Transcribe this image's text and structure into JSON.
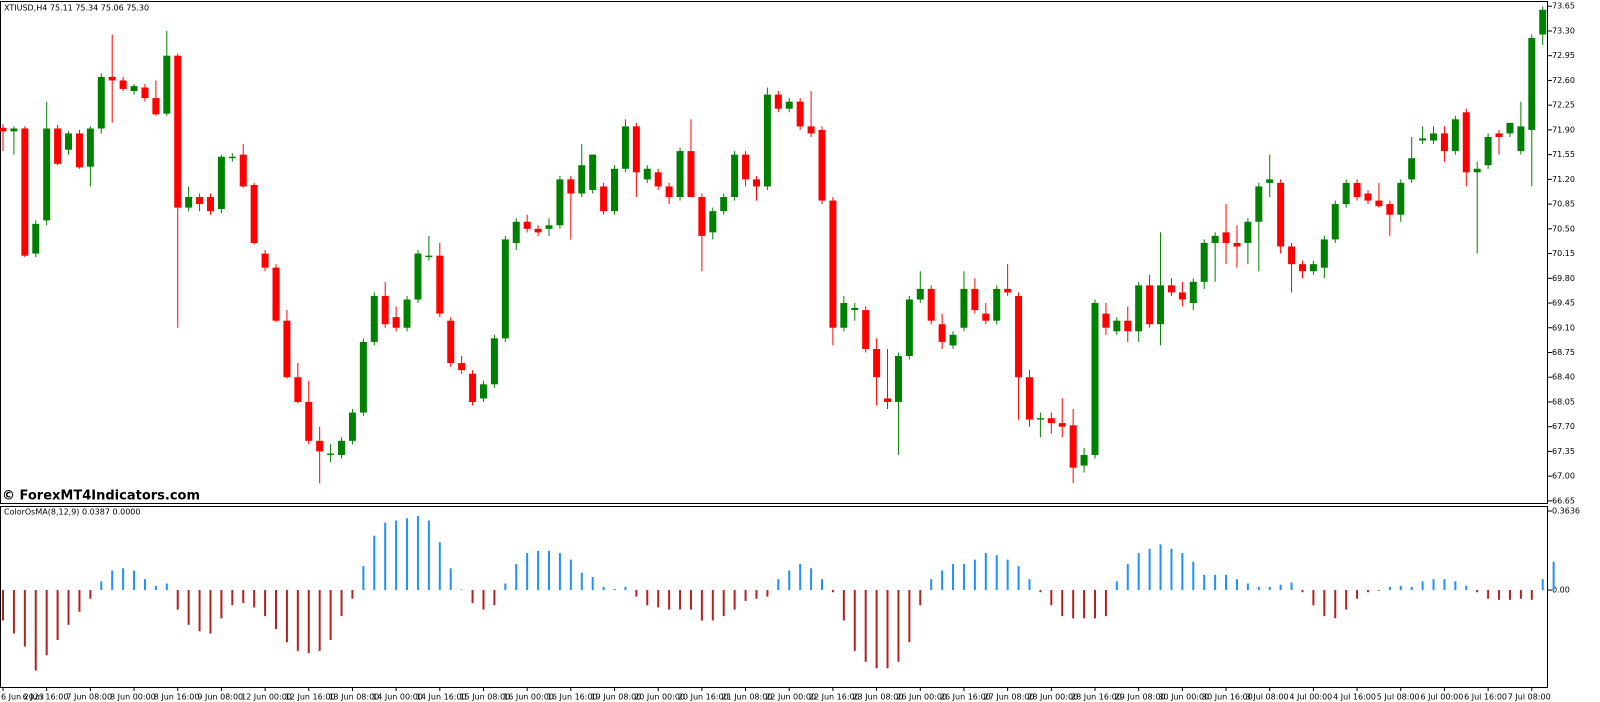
{
  "chart_data": [
    {
      "type": "candlestick",
      "title": "XTIUSD,H4  75.11 75.34 75.06 75.30",
      "annotation": "© ForexMT4Indicators.com",
      "up_color": "#008000",
      "down_color": "#ff0000",
      "wick_color": "#000000",
      "ylim": [
        66.62,
        73.71
      ],
      "yticks": [
        {
          "value": 73.65,
          "label": "73.65"
        },
        {
          "value": 73.3,
          "label": "73.30"
        },
        {
          "value": 72.95,
          "label": "72.95"
        },
        {
          "value": 72.6,
          "label": "72.60"
        },
        {
          "value": 72.25,
          "label": "72.25"
        },
        {
          "value": 71.9,
          "label": "71.90"
        },
        {
          "value": 71.55,
          "label": "71.55"
        },
        {
          "value": 71.2,
          "label": "71.20"
        },
        {
          "value": 70.85,
          "label": "70.85"
        },
        {
          "value": 70.5,
          "label": "70.50"
        },
        {
          "value": 70.15,
          "label": "70.15"
        },
        {
          "value": 69.8,
          "label": "69.80"
        },
        {
          "value": 69.45,
          "label": "69.45"
        },
        {
          "value": 69.1,
          "label": "69.10"
        },
        {
          "value": 68.75,
          "label": "68.75"
        },
        {
          "value": 68.4,
          "label": "68.40"
        },
        {
          "value": 68.05,
          "label": "68.05"
        },
        {
          "value": 67.7,
          "label": "67.70"
        },
        {
          "value": 67.35,
          "label": "67.35"
        },
        {
          "value": 67.0,
          "label": "67.00"
        },
        {
          "value": 66.65,
          "label": "66.65"
        }
      ],
      "categories": [
        "6 Jun 2023",
        null,
        null,
        null,
        "6 Jun 16:00",
        null,
        null,
        null,
        "7 Jun 08:00",
        null,
        null,
        null,
        "8 Jun 00:00",
        null,
        null,
        null,
        "8 Jun 16:00",
        null,
        null,
        null,
        "9 Jun 08:00",
        null,
        null,
        null,
        "12 Jun 00:00",
        null,
        null,
        null,
        "12 Jun 16:00",
        null,
        null,
        null,
        "13 Jun 08:00",
        null,
        null,
        null,
        "14 Jun 00:00",
        null,
        null,
        null,
        "14 Jun 16:00",
        null,
        null,
        null,
        "15 Jun 08:00",
        null,
        null,
        null,
        "16 Jun 00:00",
        null,
        null,
        null,
        "16 Jun 16:00",
        null,
        null,
        null,
        "19 Jun 08:00",
        null,
        null,
        null,
        "20 Jun 00:00",
        null,
        null,
        null,
        "20 Jun 16:00",
        null,
        null,
        null,
        "21 Jun 08:00",
        null,
        null,
        null,
        "22 Jun 00:00",
        null,
        null,
        null,
        "22 Jun 16:00",
        null,
        null,
        null,
        "23 Jun 08:00",
        null,
        null,
        null,
        "26 Jun 00:00",
        null,
        null,
        null,
        "26 Jun 16:00",
        null,
        null,
        null,
        "27 Jun 08:00",
        null,
        null,
        null,
        "28 Jun 00:00",
        null,
        null,
        null,
        "28 Jun 16:00",
        null,
        null,
        null,
        "29 Jun 08:00",
        null,
        null,
        null,
        "30 Jun 00:00",
        null,
        null,
        null,
        "30 Jun 16:00",
        null,
        null,
        null,
        "3 Jul 08:00",
        null,
        null,
        null,
        "4 Jul 00:00",
        null,
        null,
        null,
        "4 Jul 16:00",
        null,
        null,
        null,
        "5 Jul 08:00",
        null,
        null,
        null,
        "6 Jul 00:00",
        null,
        null,
        null,
        "6 Jul 16:00",
        null,
        null,
        null,
        "7 Jul 08:00",
        null
      ],
      "open": [
        71.93,
        71.88,
        71.92,
        70.15,
        70.62,
        71.92,
        71.62,
        71.85,
        71.38,
        71.92,
        72.65,
        72.6,
        72.45,
        72.5,
        72.35,
        72.13,
        72.95,
        70.8,
        70.95,
        70.95,
        70.78,
        71.5,
        71.55,
        71.12,
        70.15,
        69.95,
        69.2,
        68.4,
        68.05,
        67.5,
        67.3,
        67.3,
        67.5,
        67.9,
        68.9,
        69.55,
        69.25,
        69.1,
        69.5,
        70.1,
        70.12,
        69.2,
        68.6,
        68.45,
        68.1,
        68.3,
        68.95,
        70.3,
        70.6,
        70.5,
        70.5,
        70.55,
        71.2,
        71.0,
        71.05,
        71.1,
        70.75,
        71.35,
        71.95,
        71.2,
        71.3,
        71.1,
        70.95,
        71.6,
        70.95,
        70.45,
        70.75,
        70.95,
        71.55,
        71.2,
        71.1,
        72.4,
        72.2,
        72.3,
        71.95,
        71.9,
        70.9,
        69.1,
        69.35,
        69.35,
        68.8,
        68.1,
        68.05,
        68.7,
        69.5,
        69.65,
        69.15,
        68.85,
        69.1,
        69.65,
        69.3,
        69.2,
        69.65,
        69.55,
        68.4,
        67.8,
        67.82,
        67.75,
        67.72,
        67.15,
        67.3,
        69.3,
        69.05,
        69.2,
        69.05,
        69.7,
        69.15,
        69.7,
        69.6,
        69.45,
        69.75,
        70.3,
        70.45,
        70.3,
        70.3,
        70.6,
        71.15,
        71.15,
        70.25,
        70.0,
        69.9,
        69.95,
        70.35,
        70.85,
        71.15,
        71.0,
        70.9,
        70.85,
        70.7,
        71.2,
        71.75,
        71.75,
        71.85,
        71.6,
        72.15,
        71.3,
        71.4,
        71.85,
        71.85,
        71.6,
        71.9,
        73.25
      ],
      "high": [
        71.98,
        71.95,
        71.95,
        70.62,
        72.3,
        71.97,
        71.88,
        71.9,
        71.95,
        72.7,
        73.25,
        72.65,
        72.55,
        72.55,
        72.6,
        73.3,
        72.98,
        71.1,
        71.0,
        71.0,
        71.55,
        71.57,
        71.7,
        71.15,
        70.2,
        70.0,
        69.35,
        68.6,
        68.35,
        67.7,
        67.45,
        67.55,
        67.95,
        68.95,
        69.6,
        69.75,
        69.4,
        69.55,
        70.2,
        70.4,
        70.3,
        69.25,
        68.7,
        68.5,
        68.35,
        69.0,
        70.4,
        70.65,
        70.7,
        70.55,
        70.65,
        71.25,
        71.25,
        71.7,
        71.55,
        71.15,
        71.4,
        72.05,
        72.0,
        71.4,
        71.35,
        71.15,
        71.65,
        72.05,
        71.0,
        70.8,
        71.0,
        71.6,
        71.6,
        71.25,
        72.5,
        72.45,
        72.35,
        72.35,
        72.45,
        71.95,
        70.95,
        69.55,
        69.45,
        69.4,
        68.95,
        68.8,
        68.75,
        69.55,
        69.9,
        69.7,
        69.3,
        69.05,
        69.9,
        69.8,
        69.45,
        69.7,
        70.0,
        69.6,
        68.5,
        67.9,
        67.9,
        68.1,
        67.95,
        67.4,
        69.5,
        69.45,
        69.25,
        69.4,
        69.75,
        69.85,
        70.45,
        69.8,
        69.75,
        69.8,
        70.35,
        70.45,
        70.85,
        70.55,
        70.65,
        71.15,
        71.55,
        71.2,
        70.3,
        70.05,
        70.05,
        70.4,
        70.9,
        71.2,
        71.2,
        71.05,
        71.15,
        70.9,
        71.2,
        71.8,
        71.95,
        71.95,
        71.95,
        72.1,
        72.2,
        71.45,
        71.85,
        71.9,
        72.0,
        72.3,
        73.25,
        73.65
      ],
      "low": [
        71.6,
        71.55,
        70.1,
        70.1,
        70.55,
        71.4,
        71.55,
        71.35,
        71.1,
        71.85,
        72.0,
        72.45,
        72.4,
        72.3,
        72.1,
        72.1,
        69.1,
        70.75,
        70.75,
        70.7,
        70.72,
        71.45,
        71.08,
        70.28,
        69.9,
        69.18,
        68.38,
        68.03,
        67.45,
        66.9,
        67.2,
        67.25,
        67.45,
        67.85,
        68.85,
        69.1,
        69.05,
        69.05,
        69.45,
        70.05,
        69.25,
        68.55,
        68.45,
        68.0,
        68.05,
        68.25,
        68.9,
        70.2,
        70.45,
        70.4,
        70.4,
        70.5,
        70.35,
        70.95,
        71.0,
        70.7,
        70.7,
        71.3,
        70.95,
        71.15,
        71.05,
        70.85,
        70.9,
        70.95,
        69.9,
        70.35,
        70.7,
        70.9,
        71.1,
        70.9,
        71.05,
        72.15,
        72.15,
        71.9,
        71.8,
        70.85,
        68.85,
        69.05,
        69.2,
        68.75,
        68.0,
        67.95,
        67.3,
        68.65,
        69.45,
        69.15,
        68.8,
        68.8,
        69.05,
        69.3,
        69.15,
        69.15,
        69.55,
        67.8,
        67.7,
        67.55,
        67.6,
        67.55,
        66.9,
        67.05,
        67.25,
        69.0,
        69.0,
        68.9,
        68.9,
        69.1,
        68.85,
        69.55,
        69.4,
        69.35,
        69.65,
        69.75,
        70.0,
        69.95,
        70.0,
        69.9,
        70.95,
        70.15,
        69.6,
        69.8,
        69.85,
        69.8,
        70.3,
        70.8,
        70.9,
        70.85,
        70.8,
        70.4,
        70.6,
        71.15,
        71.7,
        71.7,
        71.45,
        71.55,
        71.1,
        70.15,
        71.35,
        71.55,
        71.8,
        71.55,
        71.1,
        73.1
      ],
      "close": [
        71.88,
        71.92,
        70.12,
        70.57,
        71.92,
        71.42,
        71.85,
        71.37,
        71.92,
        72.65,
        72.6,
        72.48,
        72.52,
        72.35,
        72.12,
        72.95,
        70.8,
        70.95,
        70.85,
        70.75,
        71.52,
        71.52,
        71.1,
        70.3,
        69.95,
        69.2,
        68.4,
        68.05,
        67.5,
        67.35,
        67.32,
        67.5,
        67.9,
        68.9,
        69.55,
        69.15,
        69.1,
        69.5,
        70.15,
        70.12,
        69.3,
        68.6,
        68.5,
        68.05,
        68.3,
        68.95,
        70.35,
        70.6,
        70.5,
        70.45,
        70.55,
        71.2,
        71.0,
        71.4,
        71.55,
        70.75,
        71.35,
        71.95,
        71.3,
        71.35,
        71.1,
        70.95,
        71.6,
        70.95,
        70.4,
        70.75,
        70.95,
        71.55,
        71.2,
        71.1,
        72.4,
        72.2,
        72.3,
        71.95,
        71.85,
        70.9,
        69.1,
        69.45,
        69.38,
        68.8,
        68.4,
        68.05,
        68.7,
        69.5,
        69.65,
        69.2,
        68.9,
        69.0,
        69.65,
        69.35,
        69.2,
        69.65,
        69.6,
        68.4,
        67.8,
        67.82,
        67.75,
        67.7,
        67.12,
        67.3,
        69.45,
        69.1,
        69.2,
        69.05,
        69.7,
        69.15,
        69.7,
        69.6,
        69.5,
        69.75,
        70.3,
        70.4,
        70.3,
        70.25,
        70.6,
        71.1,
        71.2,
        70.25,
        70.0,
        69.9,
        70.0,
        70.35,
        70.85,
        71.15,
        70.95,
        70.9,
        70.82,
        70.7,
        71.15,
        71.5,
        71.78,
        71.85,
        71.6,
        72.05,
        71.3,
        71.35,
        71.8,
        71.8,
        72.0,
        71.95,
        73.2,
        73.6
      ]
    },
    {
      "type": "bar",
      "title": "ColorOsMA(8,12,9) 0.0387 0.0000",
      "up_color": "#1e90ff",
      "down_color": "#b22222",
      "ylim": [
        -0.446,
        0.382
      ],
      "yticks": [
        0.3636,
        {
          "value": 0,
          "label": "0.00"
        }
      ],
      "values": [
        -0.14,
        -0.2,
        -0.26,
        -0.37,
        -0.3,
        -0.23,
        -0.16,
        -0.1,
        -0.04,
        0.04,
        0.09,
        0.1,
        0.09,
        0.05,
        0.02,
        0.03,
        -0.09,
        -0.16,
        -0.19,
        -0.2,
        -0.13,
        -0.07,
        -0.06,
        -0.08,
        -0.12,
        -0.18,
        -0.24,
        -0.28,
        -0.29,
        -0.28,
        -0.23,
        -0.12,
        -0.04,
        0.11,
        0.25,
        0.31,
        0.32,
        0.33,
        0.34,
        0.32,
        0.22,
        0.1,
        0.003,
        -0.06,
        -0.09,
        -0.07,
        0.03,
        0.12,
        0.17,
        0.18,
        0.18,
        0.17,
        0.14,
        0.08,
        0.06,
        0.015,
        0.005,
        0.015,
        -0.03,
        -0.07,
        -0.08,
        -0.09,
        -0.09,
        -0.09,
        -0.14,
        -0.14,
        -0.12,
        -0.09,
        -0.05,
        -0.04,
        -0.03,
        0.05,
        0.09,
        0.12,
        0.1,
        0.05,
        -0.01,
        -0.14,
        -0.28,
        -0.33,
        -0.36,
        -0.36,
        -0.33,
        -0.24,
        -0.07,
        0.05,
        0.09,
        0.12,
        0.12,
        0.14,
        0.17,
        0.16,
        0.14,
        0.11,
        0.05,
        -0.01,
        -0.07,
        -0.12,
        -0.13,
        -0.13,
        -0.13,
        -0.12,
        0.04,
        0.12,
        0.17,
        0.19,
        0.21,
        0.19,
        0.17,
        0.13,
        0.07,
        0.07,
        0.07,
        0.05,
        0.03,
        0.015,
        0.015,
        0.025,
        0.035,
        -0.01,
        -0.07,
        -0.12,
        -0.13,
        -0.09,
        -0.04,
        -0.01,
        -0.003,
        0.015,
        0.02,
        0.015,
        0.04,
        0.05,
        0.05,
        0.04,
        0.02,
        -0.01,
        -0.04,
        -0.045,
        -0.045,
        -0.04,
        -0.045,
        0.05,
        0.13
      ]
    }
  ]
}
